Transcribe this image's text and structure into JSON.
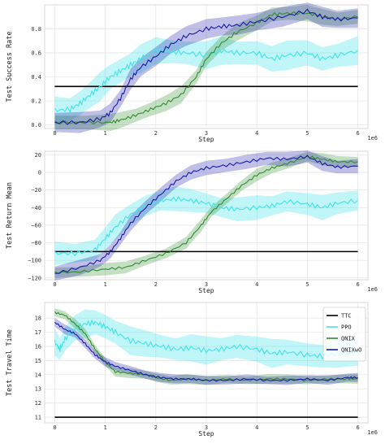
{
  "chart_data": [
    {
      "type": "line",
      "ylabel": "Test Success Rate",
      "xlabel": "Step",
      "x_scale_label": "1e6",
      "xlim": [
        -0.2,
        6.2
      ],
      "ylim": [
        -0.03,
        1.0
      ],
      "xticks": [
        "0",
        "1",
        "2",
        "3",
        "4",
        "5",
        "6"
      ],
      "yticks": [
        "0.0",
        "0.2",
        "0.4",
        "0.6",
        "0.8"
      ],
      "ytick_values": [
        0.0,
        0.2,
        0.4,
        0.6,
        0.8
      ],
      "grid": true,
      "series": [
        {
          "name": "TTC",
          "color": "#000000",
          "band": 0,
          "points": [
            [
              0,
              0.32
            ],
            [
              6,
              0.32
            ]
          ]
        },
        {
          "name": "PPO",
          "color": "#3fe4e8",
          "band": 0.12,
          "points": [
            [
              0,
              0.12
            ],
            [
              0.3,
              0.13
            ],
            [
              0.5,
              0.18
            ],
            [
              0.7,
              0.25
            ],
            [
              0.9,
              0.32
            ],
            [
              1.1,
              0.4
            ],
            [
              1.3,
              0.45
            ],
            [
              1.5,
              0.5
            ],
            [
              1.7,
              0.55
            ],
            [
              2.0,
              0.62
            ],
            [
              2.3,
              0.61
            ],
            [
              2.6,
              0.6
            ],
            [
              3.0,
              0.58
            ],
            [
              3.3,
              0.62
            ],
            [
              3.6,
              0.6
            ],
            [
              4.0,
              0.6
            ],
            [
              4.3,
              0.55
            ],
            [
              4.6,
              0.58
            ],
            [
              5.0,
              0.6
            ],
            [
              5.3,
              0.55
            ],
            [
              5.6,
              0.58
            ],
            [
              6.0,
              0.62
            ]
          ]
        },
        {
          "name": "QNIX",
          "color": "#2e8b2e",
          "band": 0.07,
          "points": [
            [
              0,
              0.02
            ],
            [
              0.6,
              0.02
            ],
            [
              1.1,
              0.02
            ],
            [
              1.3,
              0.04
            ],
            [
              1.6,
              0.08
            ],
            [
              1.9,
              0.13
            ],
            [
              2.2,
              0.18
            ],
            [
              2.5,
              0.25
            ],
            [
              2.8,
              0.4
            ],
            [
              3.0,
              0.55
            ],
            [
              3.3,
              0.68
            ],
            [
              3.6,
              0.77
            ],
            [
              4.0,
              0.85
            ],
            [
              4.3,
              0.92
            ],
            [
              4.6,
              0.93
            ],
            [
              5.0,
              0.93
            ],
            [
              5.3,
              0.9
            ],
            [
              5.6,
              0.88
            ],
            [
              6.0,
              0.9
            ]
          ]
        },
        {
          "name": "QNIXwO",
          "color": "#1a1aa8",
          "band": 0.09,
          "points": [
            [
              0,
              0.02
            ],
            [
              0.5,
              0.02
            ],
            [
              0.9,
              0.05
            ],
            [
              1.1,
              0.1
            ],
            [
              1.3,
              0.22
            ],
            [
              1.5,
              0.38
            ],
            [
              1.7,
              0.48
            ],
            [
              2.0,
              0.57
            ],
            [
              2.3,
              0.67
            ],
            [
              2.6,
              0.74
            ],
            [
              3.0,
              0.8
            ],
            [
              3.3,
              0.82
            ],
            [
              3.6,
              0.83
            ],
            [
              4.0,
              0.86
            ],
            [
              4.5,
              0.9
            ],
            [
              5.0,
              0.95
            ],
            [
              5.3,
              0.9
            ],
            [
              5.6,
              0.88
            ],
            [
              6.0,
              0.89
            ]
          ]
        }
      ]
    },
    {
      "type": "line",
      "ylabel": "Test Return Mean",
      "xlabel": "Step",
      "x_scale_label": "1e6",
      "xlim": [
        -0.2,
        6.2
      ],
      "ylim": [
        -122,
        24
      ],
      "xticks": [
        "0",
        "1",
        "2",
        "3",
        "4",
        "5",
        "6"
      ],
      "yticks": [
        "20",
        "0",
        "−20",
        "−40",
        "−60",
        "−80",
        "−100",
        "−120"
      ],
      "ytick_values": [
        20,
        0,
        -20,
        -40,
        -60,
        -80,
        -100,
        -120
      ],
      "grid": true,
      "series": [
        {
          "name": "TTC",
          "color": "#000000",
          "band": 0,
          "points": [
            [
              0,
              -90
            ],
            [
              6,
              -90
            ]
          ]
        },
        {
          "name": "PPO",
          "color": "#3fe4e8",
          "band": 14,
          "points": [
            [
              0,
              -92
            ],
            [
              0.4,
              -92
            ],
            [
              0.8,
              -88
            ],
            [
              1.0,
              -75
            ],
            [
              1.2,
              -62
            ],
            [
              1.5,
              -48
            ],
            [
              1.8,
              -38
            ],
            [
              2.1,
              -32
            ],
            [
              2.4,
              -30
            ],
            [
              2.7,
              -32
            ],
            [
              3.0,
              -35
            ],
            [
              3.3,
              -40
            ],
            [
              3.6,
              -42
            ],
            [
              4.0,
              -40
            ],
            [
              4.3,
              -38
            ],
            [
              4.6,
              -33
            ],
            [
              5.0,
              -36
            ],
            [
              5.3,
              -40
            ],
            [
              5.6,
              -35
            ],
            [
              6.0,
              -32
            ]
          ]
        },
        {
          "name": "QNIX",
          "color": "#2e8b2e",
          "band": 7,
          "points": [
            [
              0,
              -114
            ],
            [
              0.5,
              -113
            ],
            [
              1.0,
              -110
            ],
            [
              1.4,
              -108
            ],
            [
              1.8,
              -100
            ],
            [
              2.2,
              -92
            ],
            [
              2.6,
              -80
            ],
            [
              2.9,
              -60
            ],
            [
              3.1,
              -45
            ],
            [
              3.4,
              -30
            ],
            [
              3.7,
              -15
            ],
            [
              4.0,
              -3
            ],
            [
              4.3,
              5
            ],
            [
              4.6,
              10
            ],
            [
              5.0,
              18
            ],
            [
              5.3,
              15
            ],
            [
              5.6,
              12
            ],
            [
              6.0,
              12
            ]
          ]
        },
        {
          "name": "QNIXwO",
          "color": "#1a1aa8",
          "band": 9,
          "points": [
            [
              0,
              -115
            ],
            [
              0.5,
              -108
            ],
            [
              0.9,
              -100
            ],
            [
              1.1,
              -90
            ],
            [
              1.3,
              -75
            ],
            [
              1.5,
              -58
            ],
            [
              1.8,
              -40
            ],
            [
              2.1,
              -25
            ],
            [
              2.4,
              -10
            ],
            [
              2.7,
              0
            ],
            [
              3.0,
              5
            ],
            [
              3.4,
              8
            ],
            [
              3.8,
              12
            ],
            [
              4.2,
              16
            ],
            [
              4.6,
              15
            ],
            [
              5.0,
              18
            ],
            [
              5.3,
              10
            ],
            [
              5.6,
              6
            ],
            [
              6.0,
              7
            ]
          ]
        }
      ]
    },
    {
      "type": "line",
      "ylabel": "Test Travel Time",
      "xlabel": "Step",
      "x_scale_label": "1e6",
      "xlim": [
        -0.2,
        6.2
      ],
      "ylim": [
        10.6,
        19.1
      ],
      "xticks": [
        "0",
        "1",
        "2",
        "3",
        "4",
        "5",
        "6"
      ],
      "yticks": [
        "18",
        "17",
        "16",
        "15",
        "14",
        "13",
        "12",
        "11"
      ],
      "ytick_values": [
        18,
        17,
        16,
        15,
        14,
        13,
        12,
        11
      ],
      "grid": true,
      "legend": "right",
      "series": [
        {
          "name": "TTC",
          "color": "#000000",
          "band": 0,
          "points": [
            [
              0,
              11
            ],
            [
              6,
              11
            ]
          ]
        },
        {
          "name": "PPO",
          "color": "#3fe4e8",
          "band": 1.0,
          "points": [
            [
              0,
              16.3
            ],
            [
              0.1,
              15.8
            ],
            [
              0.2,
              16.5
            ],
            [
              0.4,
              17.3
            ],
            [
              0.6,
              17.6
            ],
            [
              0.8,
              17.7
            ],
            [
              1.0,
              17.4
            ],
            [
              1.2,
              17.0
            ],
            [
              1.5,
              16.4
            ],
            [
              1.8,
              16.2
            ],
            [
              2.1,
              16.0
            ],
            [
              2.4,
              15.8
            ],
            [
              2.7,
              15.9
            ],
            [
              3.0,
              15.7
            ],
            [
              3.3,
              15.8
            ],
            [
              3.6,
              16.0
            ],
            [
              4.0,
              15.8
            ],
            [
              4.3,
              15.5
            ],
            [
              4.6,
              15.6
            ],
            [
              5.0,
              15.4
            ],
            [
              5.3,
              15.3
            ],
            [
              5.6,
              15.5
            ],
            [
              6.0,
              15.6
            ]
          ]
        },
        {
          "name": "QNIX",
          "color": "#2e8b2e",
          "band": 0.35,
          "points": [
            [
              0,
              18.4
            ],
            [
              0.2,
              18.2
            ],
            [
              0.4,
              17.6
            ],
            [
              0.6,
              16.9
            ],
            [
              0.8,
              15.8
            ],
            [
              1.0,
              14.9
            ],
            [
              1.2,
              14.2
            ],
            [
              1.5,
              14.1
            ],
            [
              1.8,
              14.0
            ],
            [
              2.0,
              13.8
            ],
            [
              2.3,
              13.6
            ],
            [
              2.6,
              13.7
            ],
            [
              3.0,
              13.6
            ],
            [
              3.4,
              13.7
            ],
            [
              3.8,
              13.6
            ],
            [
              4.2,
              13.7
            ],
            [
              4.6,
              13.7
            ],
            [
              5.0,
              13.6
            ],
            [
              5.4,
              13.7
            ],
            [
              5.8,
              13.7
            ],
            [
              6.0,
              13.7
            ]
          ]
        },
        {
          "name": "QNIXwO",
          "color": "#1a1aa8",
          "band": 0.35,
          "points": [
            [
              0,
              17.7
            ],
            [
              0.2,
              17.2
            ],
            [
              0.4,
              16.9
            ],
            [
              0.6,
              16.2
            ],
            [
              0.8,
              15.4
            ],
            [
              1.0,
              14.9
            ],
            [
              1.2,
              14.6
            ],
            [
              1.5,
              14.3
            ],
            [
              1.8,
              14.0
            ],
            [
              2.1,
              13.8
            ],
            [
              2.4,
              13.7
            ],
            [
              2.7,
              13.7
            ],
            [
              3.0,
              13.6
            ],
            [
              3.4,
              13.6
            ],
            [
              3.8,
              13.7
            ],
            [
              4.2,
              13.6
            ],
            [
              4.6,
              13.6
            ],
            [
              5.0,
              13.7
            ],
            [
              5.4,
              13.6
            ],
            [
              5.8,
              13.8
            ],
            [
              6.0,
              13.8
            ]
          ]
        }
      ]
    }
  ]
}
